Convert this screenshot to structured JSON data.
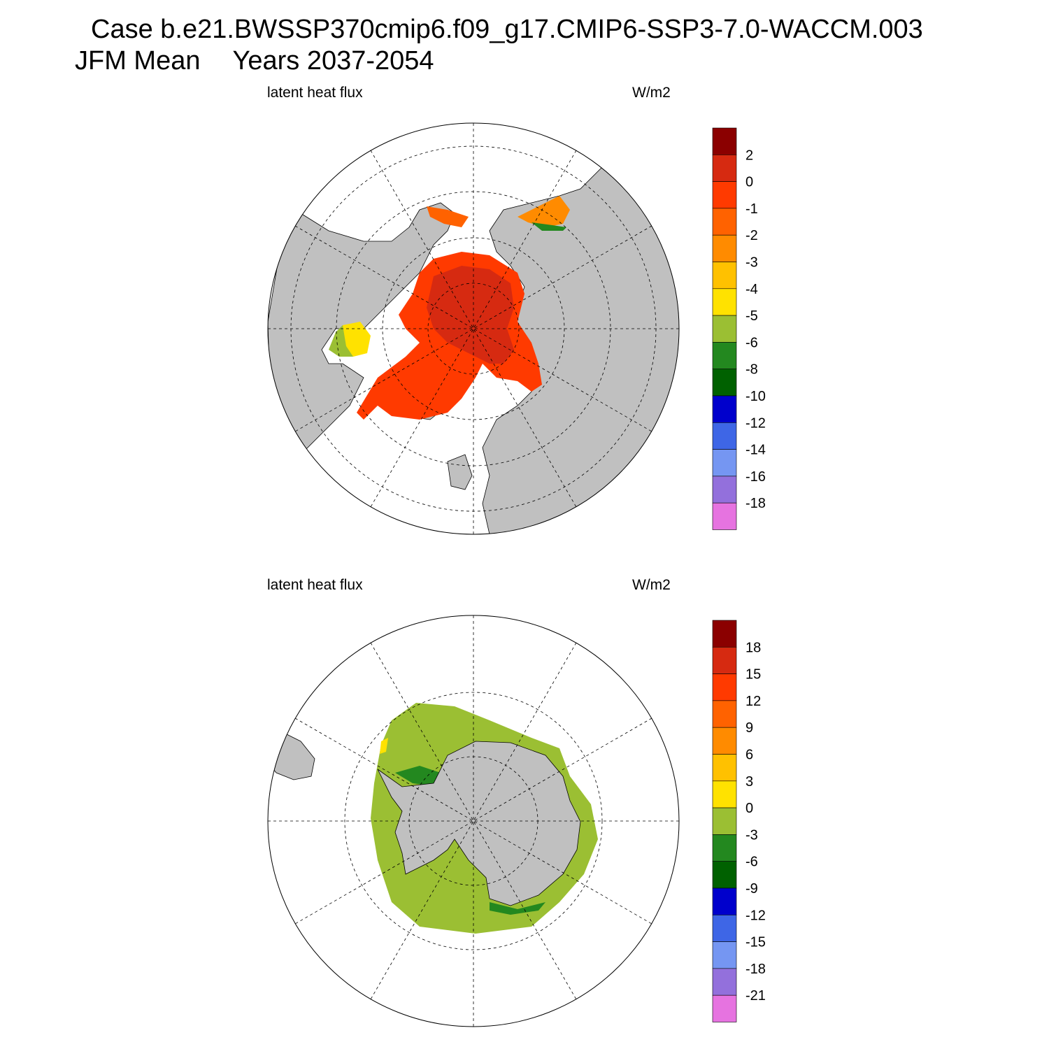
{
  "figure": {
    "title_line1": "Case b.e21.BWSSP370cmip6.f09_g17.CMIP6-SSP3-7.0-WACCM.003",
    "title_season": "JFM Mean",
    "title_years": "Years 2037-2054"
  },
  "panels": [
    {
      "id": "arctic",
      "hemisphere": "north",
      "left_label": "latent heat flux",
      "right_label": "W/m2",
      "land_color": "#c0c0c0",
      "colorbar": {
        "colors": [
          "#8b0000",
          "#d62a11",
          "#ff3a00",
          "#ff6200",
          "#ff8b00",
          "#ffc100",
          "#ffe200",
          "#9bbf33",
          "#23881f",
          "#006100",
          "#0000cc",
          "#3e66e6",
          "#7596f2",
          "#9370dc",
          "#e673e0"
        ],
        "labels": [
          "2",
          "0",
          "-1",
          "-2",
          "-3",
          "-4",
          "-5",
          "-6",
          "-8",
          "-10",
          "-12",
          "-14",
          "-16",
          "-18"
        ]
      }
    },
    {
      "id": "antarctic",
      "hemisphere": "south",
      "left_label": "latent heat flux",
      "right_label": "W/m2",
      "land_color": "#c0c0c0",
      "colorbar": {
        "colors": [
          "#8b0000",
          "#d62a11",
          "#ff3a00",
          "#ff6200",
          "#ff8b00",
          "#ffc100",
          "#ffe200",
          "#9bbf33",
          "#23881f",
          "#006100",
          "#0000cc",
          "#3e66e6",
          "#7596f2",
          "#9370dc",
          "#e673e0"
        ],
        "labels": [
          "18",
          "15",
          "12",
          "9",
          "6",
          "3",
          "0",
          "-3",
          "-6",
          "-9",
          "-12",
          "-15",
          "-18",
          "-21"
        ]
      }
    }
  ]
}
